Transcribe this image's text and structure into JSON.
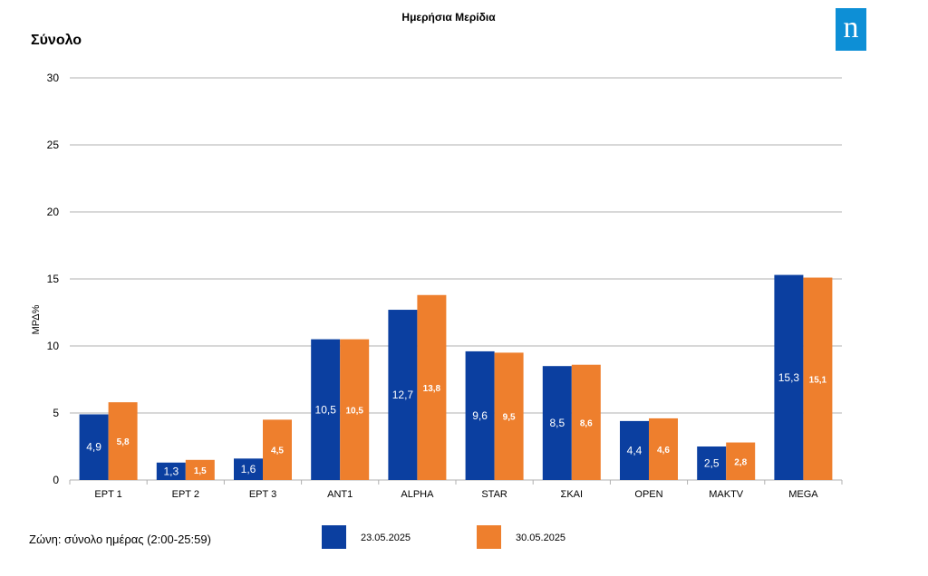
{
  "header": {
    "title": "Ημερήσια Μερίδια",
    "subtitle": "Σύνολο",
    "logo_text": "n"
  },
  "footer": {
    "zone_note": "Ζώνη: σύνολο ημέρας (2:00-25:59)"
  },
  "colors": {
    "series_1": "#0b3fa0",
    "series_2": "#ee7f2d",
    "grid": "#b0b0b0",
    "logo": "#0d8fd6"
  },
  "chart_data": {
    "type": "bar",
    "title": "Ημερήσια Μερίδια",
    "subtitle": "Σύνολο",
    "xlabel": "",
    "ylabel": "ΜΡΔ%",
    "ylim": [
      0,
      30
    ],
    "yticks": [
      0,
      5,
      10,
      15,
      20,
      25,
      30
    ],
    "grid": true,
    "legend_position": "bottom",
    "categories": [
      "EPT 1",
      "EPT 2",
      "EPT 3",
      "ANT1",
      "ALPHA",
      "STAR",
      "ΣΚΑΙ",
      "OPEN",
      "MAKTV",
      "MEGA"
    ],
    "series": [
      {
        "name": "23.05.2025",
        "values": [
          4.9,
          1.3,
          1.6,
          10.5,
          12.7,
          9.6,
          8.5,
          4.4,
          2.5,
          15.3
        ],
        "labels": [
          "4,9",
          "1,3",
          "1,6",
          "10,5",
          "12,7",
          "9,6",
          "8,5",
          "4,4",
          "2,5",
          "15,3"
        ]
      },
      {
        "name": "30.05.2025",
        "values": [
          5.8,
          1.5,
          4.5,
          10.5,
          13.8,
          9.5,
          8.6,
          4.6,
          2.8,
          15.1
        ],
        "labels": [
          "5,8",
          "1,5",
          "4,5",
          "10,5",
          "13,8",
          "9,5",
          "8,6",
          "4,6",
          "2,8",
          "15,1"
        ]
      }
    ]
  }
}
